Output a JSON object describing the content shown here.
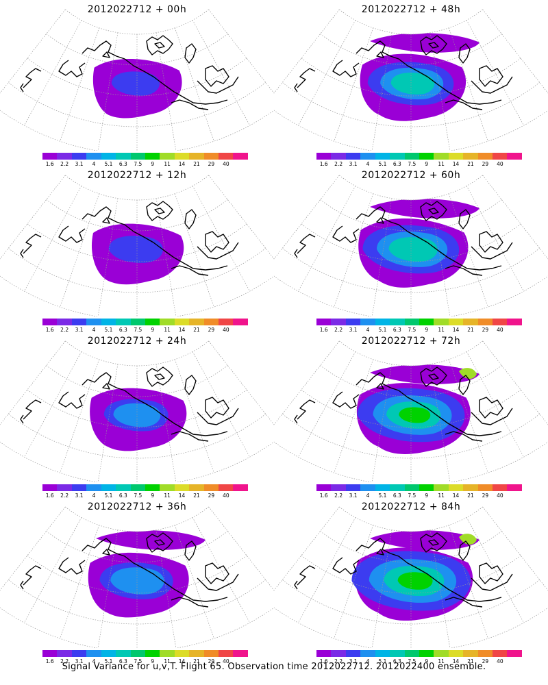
{
  "caption": "Signal Variance for u,v,T. Flight 65. Observation time 2012022712. 2012022400 ensemble.",
  "colorbar": {
    "labels": [
      "1.6",
      "2.2",
      "3.1",
      "4",
      "5.1",
      "6.3",
      "7.5",
      "9",
      "11",
      "14",
      "21",
      "29",
      "40"
    ],
    "colors": [
      "#9a00d6",
      "#7b2ae6",
      "#3c3cf0",
      "#1e90f0",
      "#00b4e6",
      "#00c8b4",
      "#00c86e",
      "#00d200",
      "#a0dc28",
      "#dcdc28",
      "#e6b428",
      "#f08c28",
      "#f04646",
      "#f0148c"
    ]
  },
  "panels": [
    {
      "title": "2012022712 + 00h",
      "level": 0.12
    },
    {
      "title": "2012022712 + 48h",
      "level": 0.55
    },
    {
      "title": "2012022712 + 12h",
      "level": 0.2
    },
    {
      "title": "2012022712 + 60h",
      "level": 0.65
    },
    {
      "title": "2012022712 + 24h",
      "level": 0.32
    },
    {
      "title": "2012022712 + 72h",
      "level": 0.75
    },
    {
      "title": "2012022712 + 36h",
      "level": 0.42
    },
    {
      "title": "2012022712 + 84h",
      "level": 0.85
    }
  ]
}
